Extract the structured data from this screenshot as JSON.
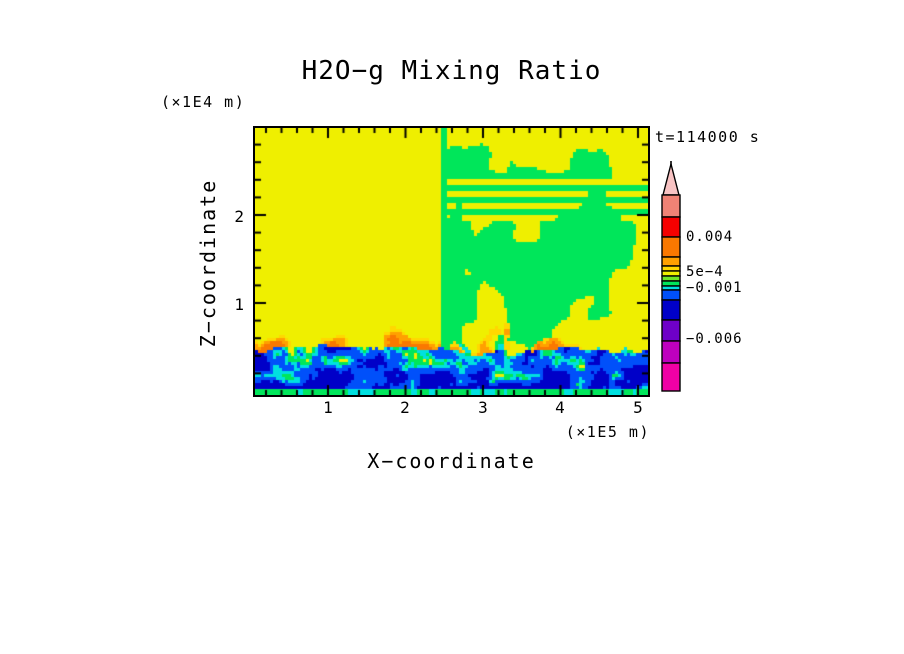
{
  "title": "H2O−g Mixing Ratio",
  "timestamp": "t=114000 s",
  "axes": {
    "x": {
      "label": "X−coordinate",
      "unit": "(×1E5 m)",
      "ticks": [
        "1",
        "2",
        "3",
        "4",
        "5"
      ]
    },
    "z": {
      "label": "Z−coordinate",
      "unit": "(×1E4 m)",
      "ticks": [
        "1",
        "2"
      ]
    }
  },
  "colorbar": {
    "labels": [
      {
        "text": "0.004"
      },
      {
        "text": "5e−4"
      },
      {
        "text": "−0.001"
      },
      {
        "text": "−0.006"
      }
    ],
    "arrow_color": "#F8C3C3",
    "segments": [
      {
        "name": "salmon",
        "color": "#F08275",
        "from": 195,
        "to": 217
      },
      {
        "name": "red",
        "color": "#F50000",
        "from": 217,
        "to": 237
      },
      {
        "name": "orange",
        "color": "#FA7800",
        "from": 237,
        "to": 257
      },
      {
        "name": "light-orange",
        "color": "#FFA000",
        "from": 257,
        "to": 266
      },
      {
        "name": "gold",
        "color": "#FFD800",
        "from": 266,
        "to": 271
      },
      {
        "name": "yellow",
        "color": "#EFEF00",
        "from": 271,
        "to": 276
      },
      {
        "name": "green-yellow",
        "color": "#6EE628",
        "from": 276,
        "to": 281
      },
      {
        "name": "green",
        "color": "#00E65A",
        "from": 281,
        "to": 286
      },
      {
        "name": "cyan",
        "color": "#00E0E0",
        "from": 286,
        "to": 290
      },
      {
        "name": "blue",
        "color": "#0050FA",
        "from": 290,
        "to": 300
      },
      {
        "name": "navy",
        "color": "#0000C8",
        "from": 300,
        "to": 320
      },
      {
        "name": "purple",
        "color": "#6E00C8",
        "from": 320,
        "to": 341
      },
      {
        "name": "magenta",
        "color": "#BE00BE",
        "from": 341,
        "to": 363
      },
      {
        "name": "pink",
        "color": "#F000A5",
        "from": 363,
        "to": 391
      }
    ]
  },
  "chart_data": {
    "type": "heatmap",
    "title": "H2O−g Mixing Ratio",
    "xlabel": "X−coordinate (×1E5 m)",
    "ylabel": "Z−coordinate (×1E4 m)",
    "time_s": 114000,
    "x_range_m": [
      0,
      510000
    ],
    "z_range_m": [
      0,
      30000
    ],
    "x_ticks_1e5_m": [
      1,
      2,
      3,
      4,
      5
    ],
    "z_ticks_1e4_m": [
      1,
      2
    ],
    "labeled_levels": [
      0.004,
      0.0005,
      -0.001,
      -0.006
    ],
    "palette": {
      "yellow": "#EFEF00",
      "green": "#00E65A",
      "greenyellow": "#6EE628",
      "cyan": "#00E0E0",
      "blue": "#0050FA",
      "navy": "#0000C8",
      "orange": "#FA7800",
      "lightorange": "#FFA000",
      "gold": "#FFD800",
      "red": "#F50000",
      "purple": "#6E00C8"
    },
    "features": {
      "ambient_left": "uniform yellow field (≈5e−4 band) for x<2.5e5 m above z≈1e4 m",
      "ambient_right": "yellow–green marbled field with horizontal streaks near z≈2.0–2.4e4 m for x>2.5e5 m",
      "vertical_interface_x_m": 245000,
      "plume_zone": "orange/gold thermals between z≈0.5e4 and 1.0e4 m, broad light-orange slab x≈1.7–2.45e5 m",
      "boundary_layer": "turbulent navy/blue layer below z≈0.5e4 m with cyan/green fringes and yellow-orange updrafts",
      "bottom_strip": "thin green/cyan band at z≈0"
    }
  }
}
